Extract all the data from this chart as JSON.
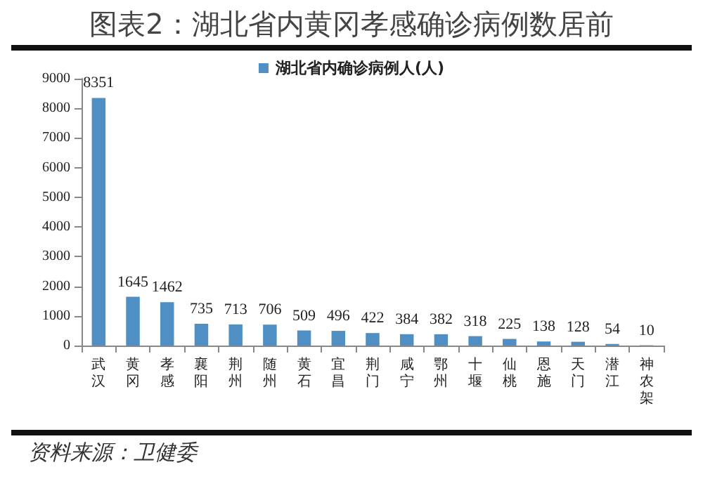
{
  "chart_data": {
    "type": "bar",
    "title": "图表2：湖北省内黄冈孝感确诊病例数居前",
    "categories": [
      "武汉",
      "黄冈",
      "孝感",
      "襄阳",
      "荆州",
      "随州",
      "黄石",
      "宜昌",
      "荆门",
      "咸宁",
      "鄂州",
      "十堰",
      "仙桃",
      "恩施",
      "天门",
      "潜江",
      "神农架"
    ],
    "series": [
      {
        "name": "湖北省内确诊病例人(人)",
        "color": "#4f8fc4",
        "values": [
          8351,
          1645,
          1462,
          735,
          713,
          706,
          509,
          496,
          422,
          384,
          382,
          318,
          225,
          138,
          128,
          54,
          10
        ]
      }
    ],
    "ylim": [
      0,
      9000
    ],
    "yticks": [
      0,
      1000,
      2000,
      3000,
      4000,
      5000,
      6000,
      7000,
      8000,
      9000
    ],
    "grid": false,
    "legend": "top",
    "data_labels": true,
    "annotations": [
      "资料来源：卫健委"
    ]
  }
}
